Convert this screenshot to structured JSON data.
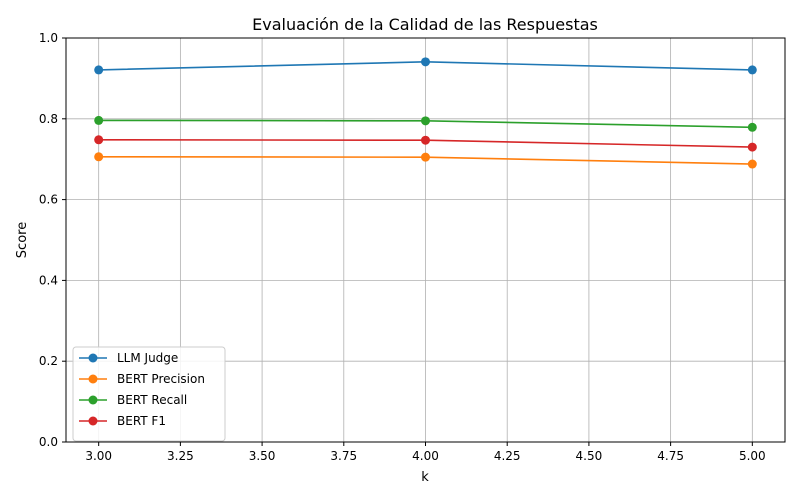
{
  "chart_data": {
    "type": "line",
    "title": "Evaluación de la Calidad de las Respuestas",
    "xlabel": "k",
    "ylabel": "Score",
    "xlim": [
      2.9,
      5.1
    ],
    "ylim": [
      0.0,
      1.0
    ],
    "x_ticks": [
      "3.00",
      "3.25",
      "3.50",
      "3.75",
      "4.00",
      "4.25",
      "4.50",
      "4.75",
      "5.00"
    ],
    "y_ticks": [
      "0.0",
      "0.2",
      "0.4",
      "0.6",
      "0.8",
      "1.0"
    ],
    "grid": true,
    "legend_position": "lower-left",
    "x": [
      3,
      4,
      5
    ],
    "series": [
      {
        "name": "LLM Judge",
        "color": "#1f77b4",
        "values": [
          0.921,
          0.941,
          0.921
        ]
      },
      {
        "name": "BERT Precision",
        "color": "#ff7f0e",
        "values": [
          0.706,
          0.705,
          0.688
        ]
      },
      {
        "name": "BERT Recall",
        "color": "#2ca02c",
        "values": [
          0.796,
          0.795,
          0.779
        ]
      },
      {
        "name": "BERT F1",
        "color": "#d62728",
        "values": [
          0.748,
          0.747,
          0.73
        ]
      }
    ]
  }
}
